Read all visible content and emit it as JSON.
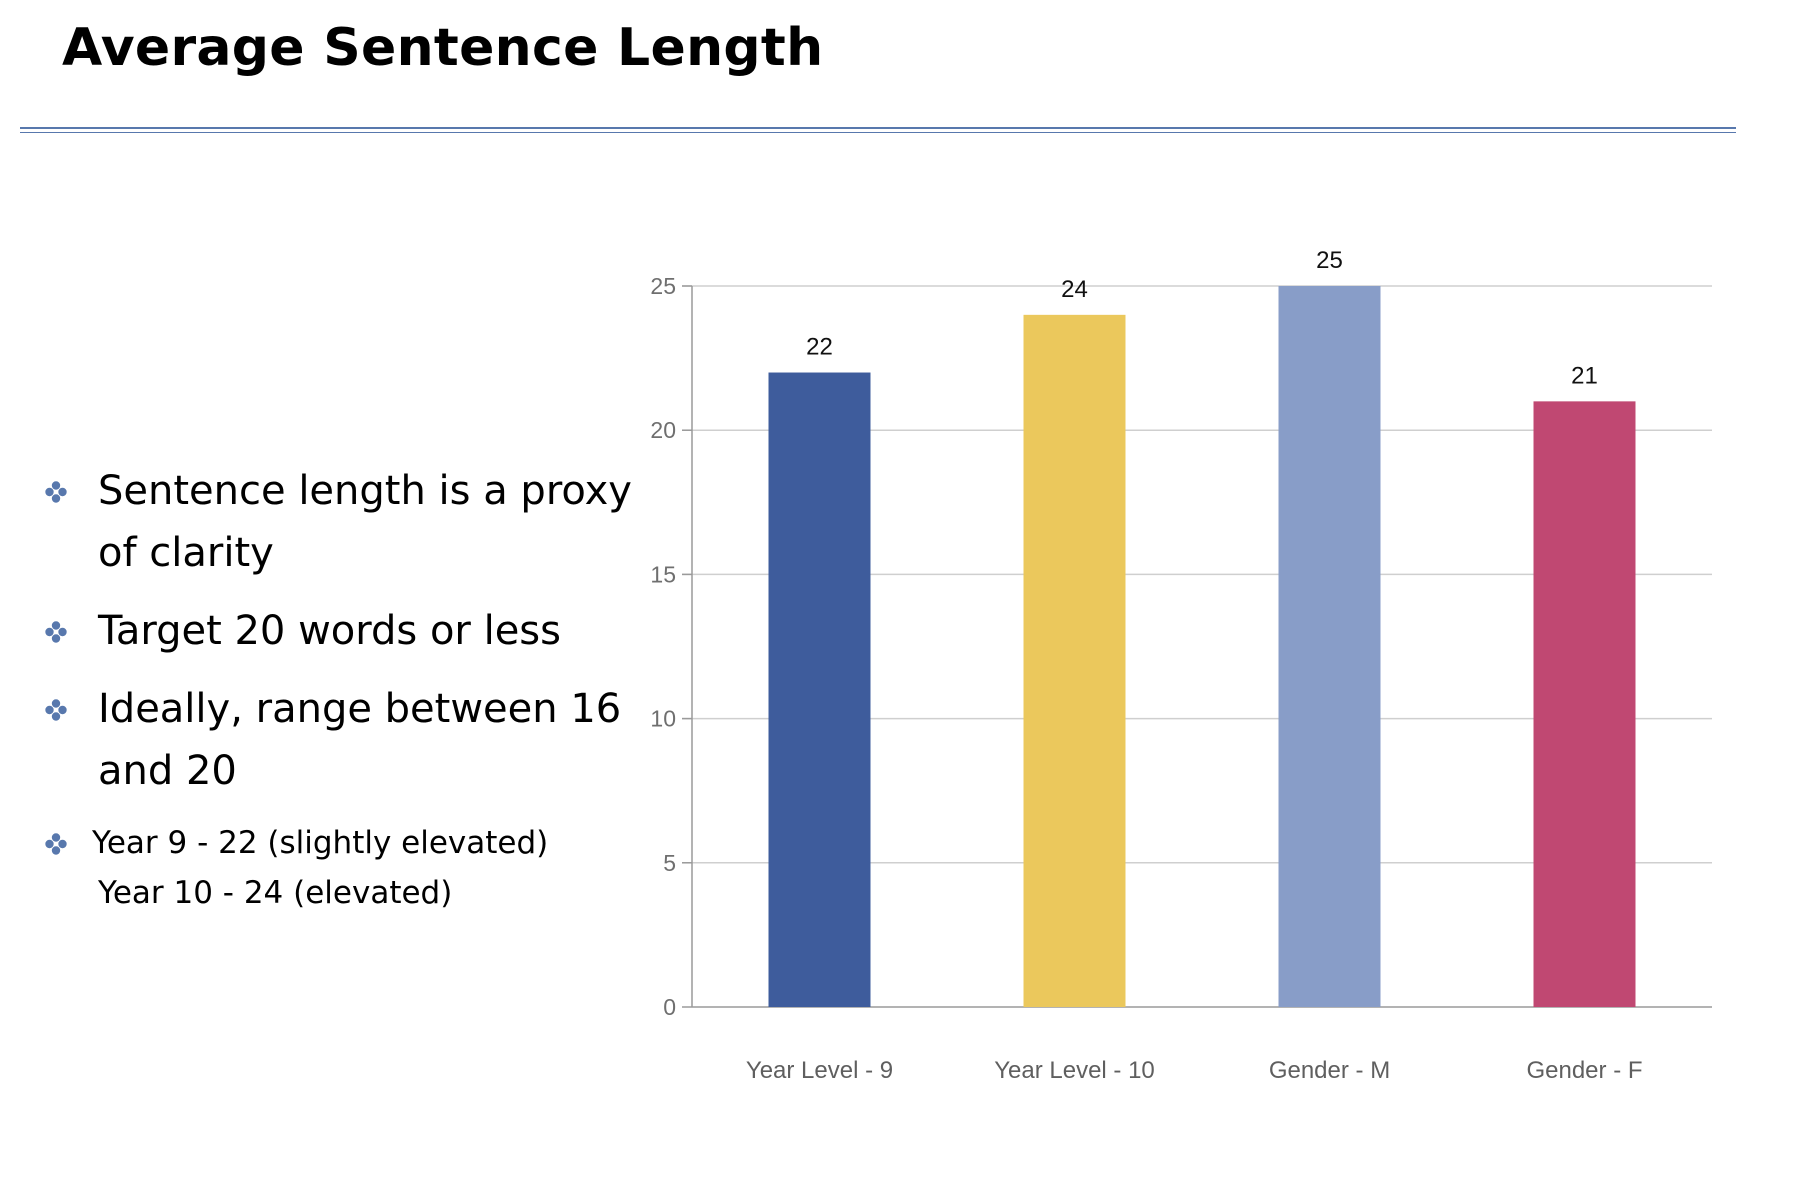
{
  "slide": {
    "title": "Average Sentence Length",
    "bullets": [
      {
        "lines": [
          "Sentence length is a proxy",
          "of clarity"
        ]
      },
      {
        "lines": [
          "Target 20 words or less"
        ]
      },
      {
        "lines": [
          "Ideally, range between 16",
          "and 20"
        ]
      },
      {
        "lines": [
          "Year 9 - 22 (slightly elevated)",
          "Year 10 - 24 (elevated)"
        ],
        "small": true
      }
    ],
    "bullet_icon": "four-petal-bullet-icon",
    "accent_color": "#5878ad"
  },
  "chart_data": {
    "type": "bar",
    "title": "",
    "xlabel": "",
    "ylabel": "",
    "categories": [
      "Year Level - 9",
      "Year Level - 10",
      "Gender - M",
      "Gender - F"
    ],
    "values": [
      22,
      24,
      25,
      21
    ],
    "data_labels": [
      "22",
      "24",
      "25",
      "21"
    ],
    "colors": [
      "#3e5c9c",
      "#ebc85c",
      "#889dc8",
      "#c04872"
    ],
    "ylim": [
      0,
      25
    ],
    "yticks": [
      0,
      5,
      10,
      15,
      20,
      25
    ],
    "ytick_labels": [
      "0",
      "5",
      "10",
      "15",
      "20",
      "25"
    ],
    "grid": true,
    "legend": "none"
  }
}
